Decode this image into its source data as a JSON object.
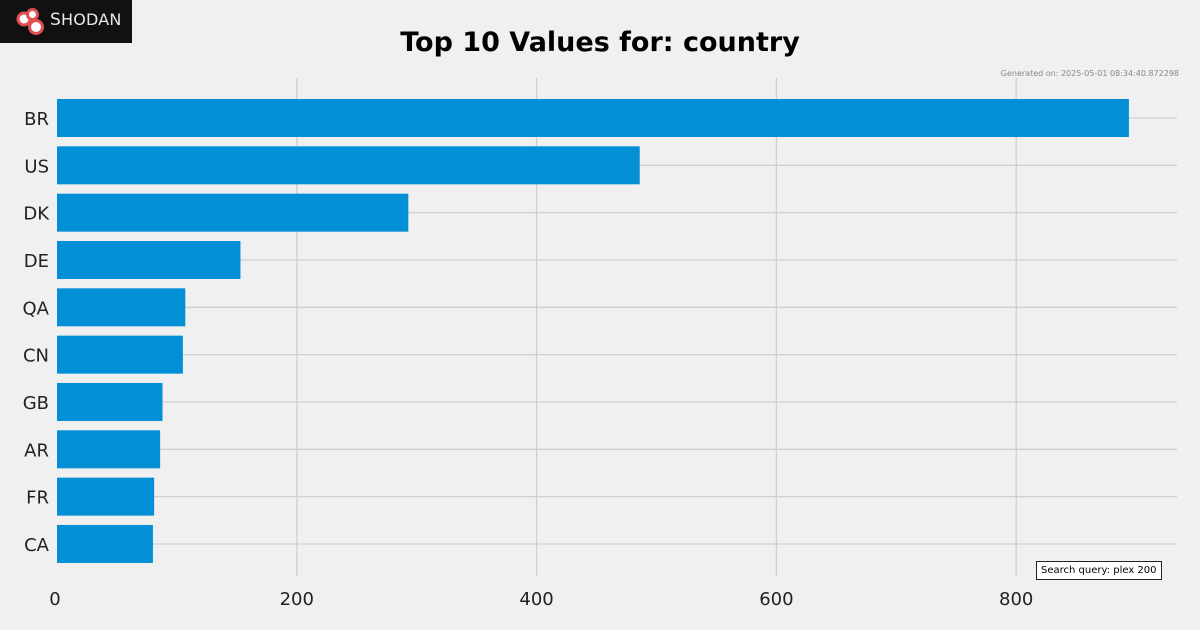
{
  "logo": {
    "text_first": "S",
    "text_rest": "HODAN",
    "colors": {
      "background": "#111111",
      "circle": "#e05050"
    }
  },
  "generated_text": "Generated on: 2025-05-01 08:34:40.872298",
  "search_query_text": "Search query: plex 200",
  "chart_data": {
    "type": "bar",
    "orientation": "horizontal",
    "title": "Top 10 Values for: country",
    "xlabel": "",
    "ylabel": "",
    "categories": [
      "BR",
      "US",
      "DK",
      "DE",
      "QA",
      "CN",
      "GB",
      "AR",
      "FR",
      "CA"
    ],
    "values": [
      894,
      486,
      293,
      153,
      107,
      105,
      88,
      86,
      81,
      80
    ],
    "xlim": [
      0,
      940
    ],
    "xticks": [
      0,
      200,
      400,
      600,
      800
    ],
    "grid": true,
    "bar_color": "#038fd6",
    "background": "#f0f0f0",
    "grid_color": "#cfcfcf"
  }
}
